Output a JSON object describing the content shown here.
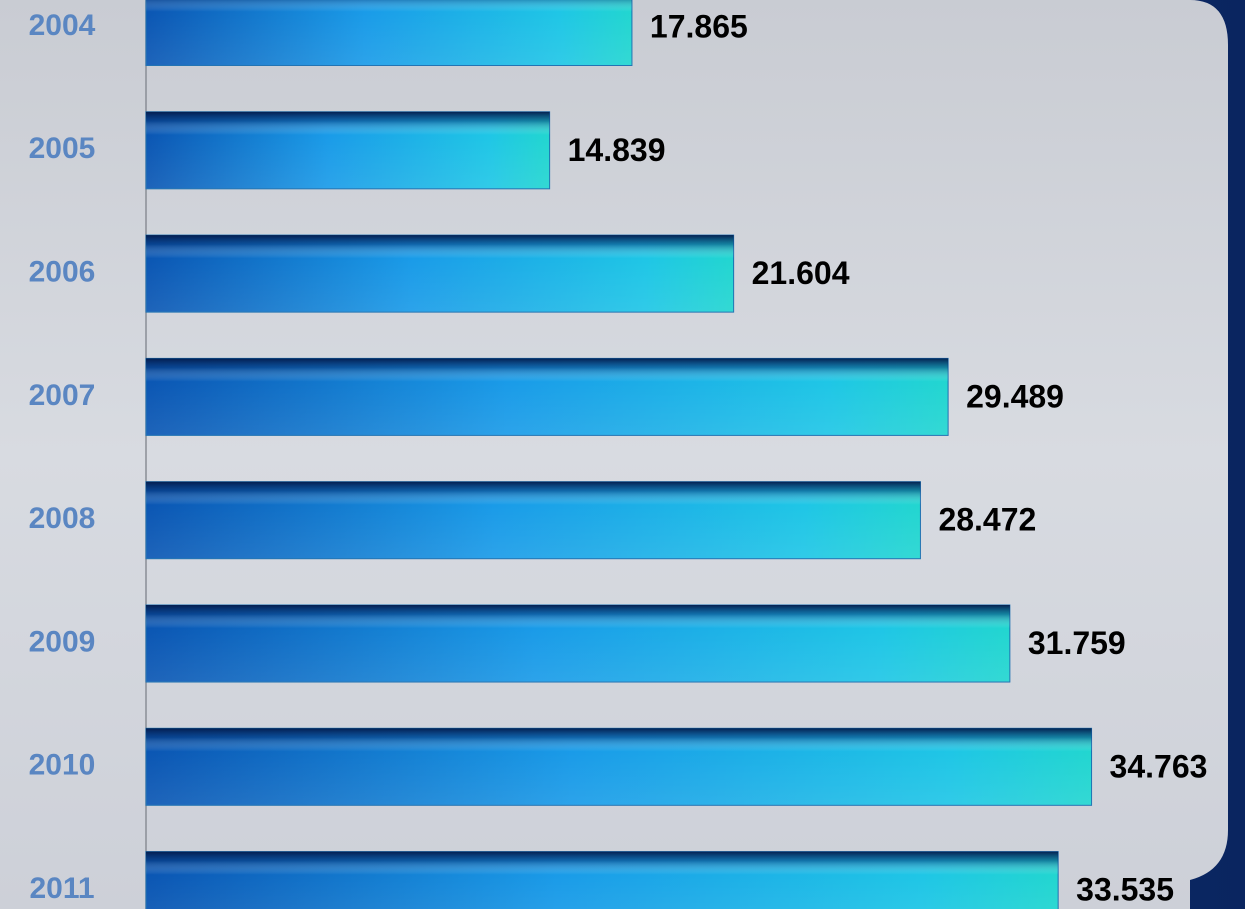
{
  "chart_data": {
    "type": "barh",
    "categories": [
      "2004",
      "2005",
      "2006",
      "2007",
      "2008",
      "2009",
      "2010",
      "2011"
    ],
    "values": [
      17.865,
      14.839,
      21.604,
      29.489,
      28.472,
      31.759,
      34.763,
      33.535
    ],
    "color": "#1e90e0",
    "xlim": [
      0,
      40
    ]
  }
}
